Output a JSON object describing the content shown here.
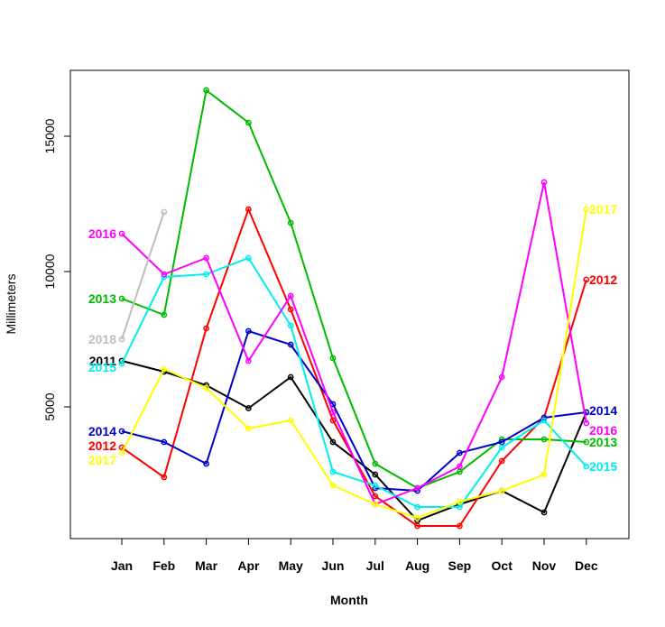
{
  "chart_data": {
    "type": "line",
    "xlabel": "Month",
    "ylabel": "Millimeters",
    "categories": [
      "Jan",
      "Feb",
      "Mar",
      "Apr",
      "May",
      "Jun",
      "Jul",
      "Aug",
      "Sep",
      "Oct",
      "Nov",
      "Dec"
    ],
    "yticks": [
      5000,
      10000,
      15000
    ],
    "ylim": [
      0,
      17400
    ],
    "grid": false,
    "legend": "none (series labelled at line ends)",
    "series": [
      {
        "name": "2011",
        "color": "#000000",
        "values": [
          6700,
          6300,
          5800,
          4950,
          6100,
          3700,
          2500,
          800,
          1400,
          1900,
          1100,
          4800
        ],
        "label_left": "2011",
        "label_right": null
      },
      {
        "name": "2012",
        "color": "#ff0000",
        "values": [
          3500,
          2400,
          7900,
          12300,
          8600,
          4500,
          1700,
          600,
          600,
          3000,
          4600,
          9700
        ],
        "label_left": "2012",
        "label_right": "2012"
      },
      {
        "name": "2013",
        "color": "#00bb00",
        "values": [
          9000,
          8400,
          16700,
          15500,
          11800,
          6800,
          2900,
          2000,
          2600,
          3800,
          3800,
          3700
        ],
        "label_left": "2013",
        "label_right": "2013"
      },
      {
        "name": "2014",
        "color": "#0000cc",
        "values": [
          4100,
          3700,
          2900,
          7800,
          7300,
          5100,
          2000,
          1900,
          3300,
          3700,
          4600,
          4800
        ],
        "label_left": "2014",
        "label_right": "2014"
      },
      {
        "name": "2015",
        "color": "#00eeee",
        "values": [
          6600,
          9800,
          9900,
          10500,
          8000,
          2600,
          2100,
          1300,
          1300,
          3500,
          4500,
          2800
        ],
        "label_left": "2015",
        "label_right": "2015"
      },
      {
        "name": "2016",
        "color": "#ff00ff",
        "values": [
          11400,
          9900,
          10500,
          6700,
          9100,
          4800,
          1400,
          2000,
          2800,
          6100,
          13300,
          4400
        ],
        "label_left": "2016",
        "label_right": "2016"
      },
      {
        "name": "2017",
        "color": "#ffff00",
        "values": [
          3300,
          6400,
          5700,
          4200,
          4500,
          2100,
          1400,
          900,
          1500,
          1900,
          2500,
          12300
        ],
        "label_left": "2017",
        "label_right": "2017"
      },
      {
        "name": "2018",
        "color": "#bebebe",
        "values": [
          7500,
          12200,
          null,
          null,
          null,
          null,
          null,
          null,
          null,
          null,
          null,
          null
        ],
        "label_left": "2018",
        "label_right": null
      }
    ]
  }
}
